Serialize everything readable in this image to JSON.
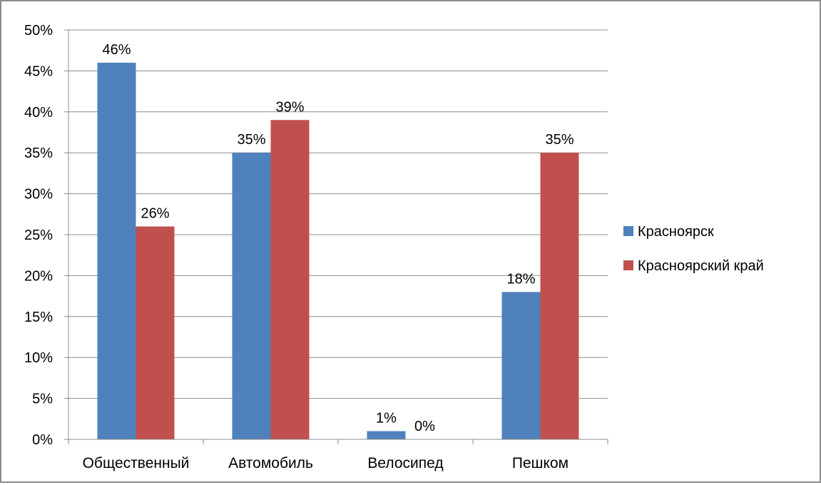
{
  "chart_data": {
    "type": "bar",
    "title": "",
    "xlabel": "",
    "ylabel": "",
    "categories": [
      "Общественный",
      "Автомобиль",
      "Велосипед",
      "Пешком"
    ],
    "series": [
      {
        "name": "Красноярск",
        "color": "#4f81bd",
        "values": [
          46,
          35,
          1,
          18
        ],
        "labels": [
          "46%",
          "35%",
          "1%",
          "18%"
        ]
      },
      {
        "name": "Красноярский край",
        "color": "#c0504d",
        "values": [
          26,
          39,
          0,
          35
        ],
        "labels": [
          "26%",
          "39%",
          "0%",
          "35%"
        ]
      }
    ],
    "ylim": [
      0,
      50
    ],
    "yticks": [
      0,
      5,
      10,
      15,
      20,
      25,
      30,
      35,
      40,
      45,
      50
    ],
    "ytick_labels": [
      "0%",
      "5%",
      "10%",
      "15%",
      "20%",
      "25%",
      "30%",
      "35%",
      "40%",
      "45%",
      "50%"
    ],
    "grid": true,
    "legend_position": "right"
  }
}
